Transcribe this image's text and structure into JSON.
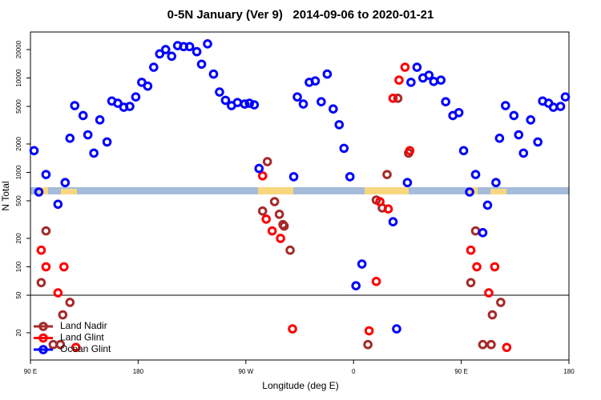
{
  "chart_data": {
    "type": "scatter",
    "title": "0-5N January (Ver 9)   2014-09-06 to 2020-01-21",
    "x_label": "Longitude (deg E)",
    "y_label": "N Total",
    "xlim": [
      90,
      540
    ],
    "xticks": [
      {
        "value": 90,
        "label": "90 E"
      },
      {
        "value": 180,
        "label": "180"
      },
      {
        "value": 270,
        "label": "90 W"
      },
      {
        "value": 360,
        "label": "0"
      },
      {
        "value": 450,
        "label": "90 E"
      },
      {
        "value": 540,
        "label": "180"
      }
    ],
    "ylim": [
      10.3,
      30700
    ],
    "y_scale": "log",
    "yticks": [
      20,
      50,
      100,
      200,
      500,
      1000,
      2000,
      5000,
      10000,
      20000
    ],
    "hlines": [
      50
    ],
    "legend": "lower left",
    "series": [
      {
        "name": "Land Nadir",
        "color": "#a52a2a",
        "x": [
          99,
          103,
          109,
          115,
          117,
          123,
          284,
          288,
          294,
          298,
          301,
          302,
          307,
          372,
          379,
          384,
          388,
          397,
          406,
          458,
          462,
          468,
          475,
          476,
          483
        ],
        "values": [
          68,
          240,
          15,
          15,
          31,
          42,
          390,
          1300,
          490,
          360,
          280,
          270,
          150,
          15,
          510,
          420,
          950,
          6100,
          1600,
          68,
          240,
          15,
          15,
          31,
          42
        ]
      },
      {
        "name": "Land Glint",
        "color": "#ff0000",
        "x": [
          99,
          103,
          113,
          118,
          128,
          284,
          287,
          292,
          299,
          309,
          373,
          379,
          382,
          389,
          393,
          398,
          403,
          407,
          458,
          463,
          473,
          478,
          488
        ],
        "values": [
          150,
          100,
          53,
          100,
          14,
          920,
          320,
          240,
          200,
          22,
          21,
          70,
          490,
          410,
          6100,
          9500,
          13000,
          1700,
          150,
          100,
          53,
          100,
          14
        ]
      },
      {
        "name": "Ocean Glint",
        "color": "#0000ff",
        "x": [
          93,
          97,
          103,
          113,
          119,
          123,
          127,
          134,
          138,
          143,
          148,
          154,
          158,
          163,
          168,
          173,
          178,
          183,
          188,
          193,
          198,
          203,
          208,
          213,
          218,
          223,
          229,
          233,
          238,
          243,
          248,
          253,
          258,
          263,
          269,
          273,
          277,
          281,
          310,
          313,
          318,
          323,
          328,
          333,
          338,
          343,
          348,
          352,
          357,
          362,
          367,
          393,
          396,
          405,
          408,
          413,
          418,
          423,
          427,
          433,
          437,
          443,
          448,
          452,
          457,
          462,
          468,
          472,
          479,
          482,
          487,
          494,
          498,
          502,
          508,
          514,
          518,
          523,
          527,
          533,
          537
        ],
        "values": [
          1700,
          620,
          950,
          460,
          780,
          2300,
          5100,
          4000,
          2500,
          1600,
          3600,
          2100,
          5700,
          5400,
          4900,
          5000,
          6300,
          9000,
          8200,
          13000,
          18000,
          20000,
          17000,
          22000,
          21500,
          21500,
          19000,
          14000,
          23000,
          11000,
          7100,
          5800,
          5100,
          5500,
          5300,
          5400,
          5200,
          1100,
          900,
          6300,
          5300,
          9000,
          9300,
          5600,
          11000,
          4700,
          3200,
          1800,
          900,
          63,
          107,
          300,
          22,
          780,
          9000,
          13000,
          10000,
          10700,
          9200,
          9500,
          5600,
          4000,
          4300,
          1700,
          620,
          950,
          230,
          450,
          780,
          2300,
          5100,
          4000,
          2500,
          1600,
          3600,
          2100,
          5700,
          5400,
          4900,
          5000,
          6300
        ]
      }
    ]
  }
}
